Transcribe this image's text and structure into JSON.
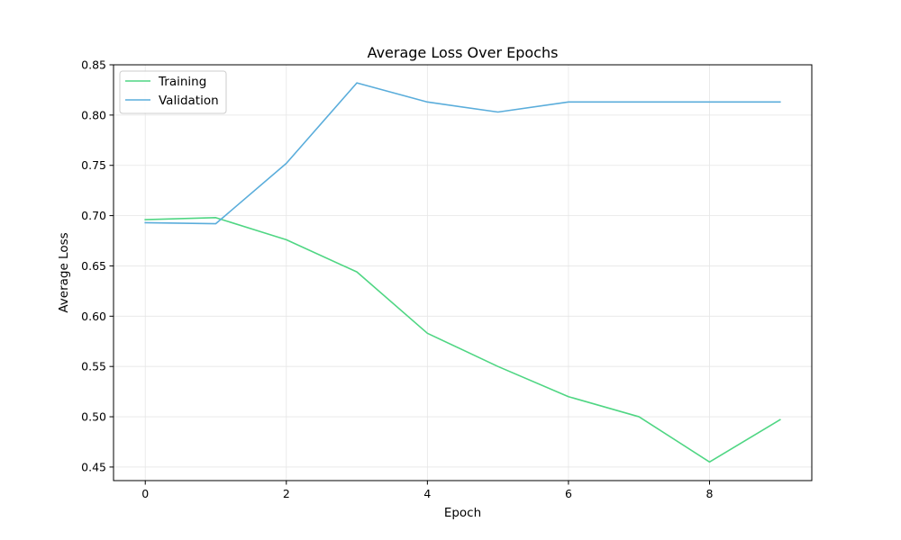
{
  "chart_data": {
    "type": "line",
    "title": "Average Loss Over Epochs",
    "xlabel": "Epoch",
    "ylabel": "Average Loss",
    "x": [
      0,
      1,
      2,
      3,
      4,
      5,
      6,
      7,
      8,
      9
    ],
    "xlim": [
      -0.45,
      9.45
    ],
    "ylim": [
      0.4365,
      0.85
    ],
    "xticks": [
      0,
      2,
      4,
      6,
      8
    ],
    "xtick_labels": [
      "0",
      "2",
      "4",
      "6",
      "8"
    ],
    "yticks": [
      0.45,
      0.5,
      0.55,
      0.6,
      0.65,
      0.7,
      0.75,
      0.8,
      0.85
    ],
    "ytick_labels": [
      "0.45",
      "0.50",
      "0.55",
      "0.60",
      "0.65",
      "0.70",
      "0.75",
      "0.80",
      "0.85"
    ],
    "grid": true,
    "legend_position": "top-left",
    "series": [
      {
        "name": "Training",
        "color": "#4fd683",
        "values": [
          0.696,
          0.698,
          0.676,
          0.644,
          0.583,
          0.55,
          0.52,
          0.5,
          0.455,
          0.497
        ]
      },
      {
        "name": "Validation",
        "color": "#5aaddb",
        "values": [
          0.693,
          0.692,
          0.752,
          0.832,
          0.813,
          0.803,
          0.813,
          0.813,
          0.813,
          0.813
        ]
      }
    ]
  }
}
